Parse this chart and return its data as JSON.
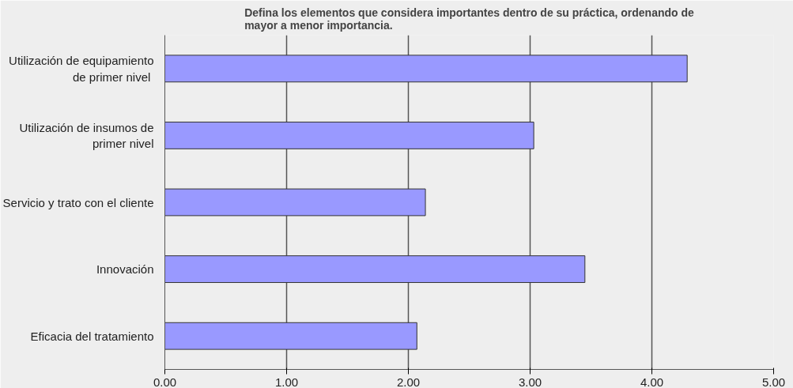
{
  "chart_data": {
    "type": "bar",
    "orientation": "horizontal",
    "title": "Defina los elementos que considera importantes dentro de su práctica, ordenando de\nmayor a menor importancia.",
    "categories": [
      "Utilización de equipamiento\nde primer  nivel",
      "Utilización de insumos de\nprimer nivel",
      "Servicio y trato con el cliente",
      "Innovación",
      "Eficacia del tratamiento"
    ],
    "values": [
      4.29,
      3.03,
      2.14,
      3.45,
      2.07
    ],
    "color": "#9999ff",
    "xlim": [
      0,
      5
    ],
    "xticks": [
      {
        "value": 0,
        "label": "0.00"
      },
      {
        "value": 1,
        "label": "1.00"
      },
      {
        "value": 2,
        "label": "2.00"
      },
      {
        "value": 3,
        "label": "3.00"
      },
      {
        "value": 4,
        "label": "4.00"
      },
      {
        "value": 5,
        "label": "5.00"
      }
    ],
    "grid": "x"
  }
}
